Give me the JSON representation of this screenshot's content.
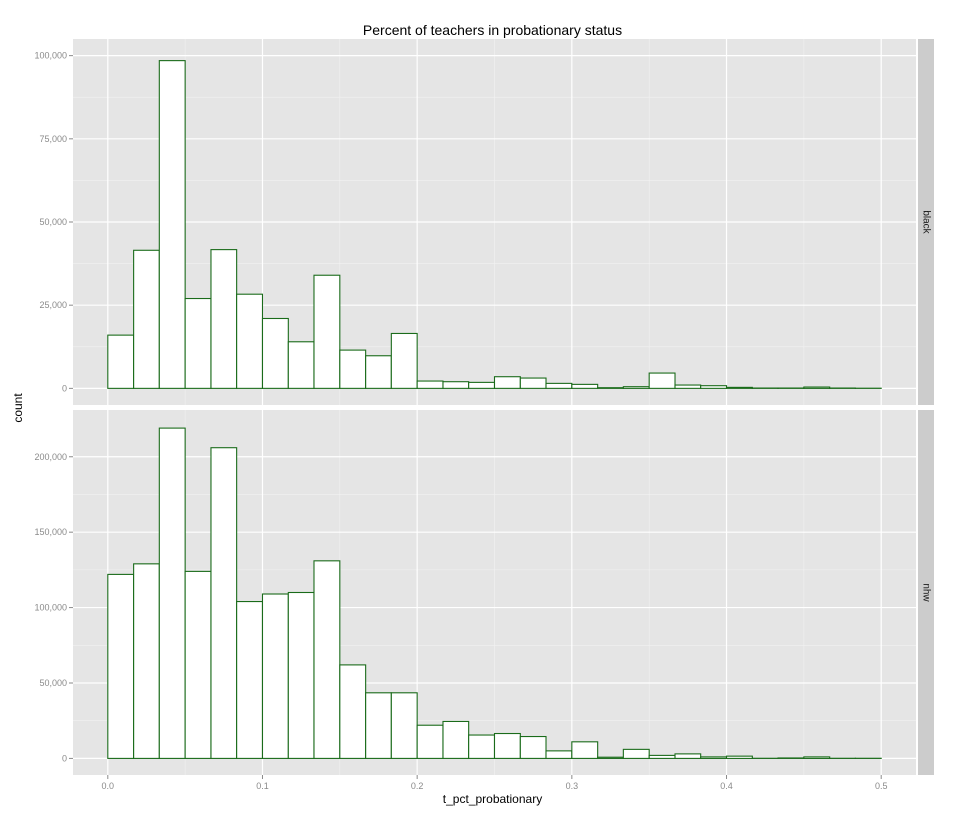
{
  "chart_data": {
    "type": "bar",
    "title": "Percent of teachers in probationary status",
    "xlabel": "t_pct_probationary",
    "ylabel": "count",
    "xlim": [
      -0.0225,
      0.5225
    ],
    "x_ticks": [
      0.0,
      0.1,
      0.2,
      0.3,
      0.4,
      0.5
    ],
    "x_tick_labels": [
      "0.0",
      "0.1",
      "0.2",
      "0.3",
      "0.4",
      "0.5"
    ],
    "bin_edges": [
      0.0,
      0.0167,
      0.0333,
      0.05,
      0.0667,
      0.0833,
      0.1,
      0.1167,
      0.1333,
      0.15,
      0.1667,
      0.1833,
      0.2,
      0.2167,
      0.2333,
      0.25,
      0.2667,
      0.2833,
      0.3,
      0.3167,
      0.3333,
      0.35,
      0.3667,
      0.3833,
      0.4,
      0.4167,
      0.4333,
      0.45,
      0.4667,
      0.4833,
      0.5
    ],
    "grid": true,
    "fill_color": "#ffffff",
    "outline_color": "#1a6b1a",
    "panel_background": "#e5e5e5",
    "strip_background": "#cccccc",
    "facets": [
      {
        "strip": "black",
        "ylim": [
          -5000,
          105000
        ],
        "y_ticks": [
          0,
          25000,
          50000,
          75000,
          100000
        ],
        "y_tick_labels": [
          "0",
          "25,000",
          "50,000",
          "75,000",
          "100,000"
        ],
        "counts": [
          16000,
          41500,
          98500,
          27000,
          41700,
          28300,
          21000,
          14000,
          34000,
          11500,
          9800,
          16500,
          2200,
          2000,
          1800,
          3500,
          3100,
          1500,
          1200,
          200,
          500,
          4600,
          1000,
          800,
          300,
          100,
          100,
          400,
          100,
          50
        ]
      },
      {
        "strip": "nhw",
        "ylim": [
          -11000,
          231000
        ],
        "y_ticks": [
          0,
          50000,
          100000,
          150000,
          200000
        ],
        "y_tick_labels": [
          "0",
          "50,000",
          "100,000",
          "150,000",
          "200,000"
        ],
        "counts": [
          122000,
          129000,
          219000,
          124000,
          206000,
          104000,
          109000,
          110000,
          131000,
          62000,
          43500,
          43500,
          22000,
          24500,
          15500,
          16500,
          14500,
          5000,
          11000,
          800,
          6000,
          2000,
          3000,
          1000,
          1500,
          100,
          300,
          1000,
          100,
          100
        ]
      }
    ]
  }
}
